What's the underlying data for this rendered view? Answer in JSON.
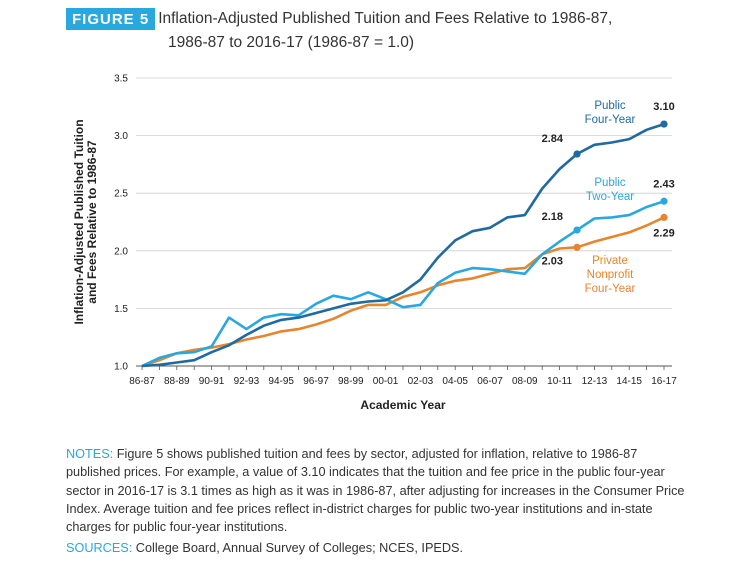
{
  "header": {
    "badge": "FIGURE 5",
    "title_line1": "Inflation-Adjusted Published Tuition and Fees Relative to 1986-87,",
    "title_line2": "1986-87 to 2016-17 (1986-87 = 1.0)"
  },
  "notes": {
    "label": "NOTES:",
    "text": " Figure 5 shows published tuition and fees by sector, adjusted for inflation, relative to 1986-87 published prices. For example, a value of 3.10 indicates that the tuition and fee price in the public four-year sector in 2016-17 is 3.1 times as high as it was in 1986-87, after adjusting for increases in the Consumer Price Index. Average tuition and fee prices reflect in-district charges for public two-year institutions and in-state charges for public four-year institutions."
  },
  "sources": {
    "label": "SOURCES:",
    "text": " College Board, Annual Survey of Colleges; NCES, IPEDS."
  },
  "chart_data": {
    "type": "line",
    "title": "Inflation-Adjusted Published Tuition and Fees Relative to 1986-87, 1986-87 to 2016-17 (1986-87 = 1.0)",
    "xlabel": "Academic Year",
    "ylabel_lines": [
      "Inflation-Adjusted Published Tuition",
      "and Fees Relative to 1986-87"
    ],
    "ylim": [
      1.0,
      3.5
    ],
    "yticks": [
      1.0,
      1.5,
      2.0,
      2.5,
      3.0,
      3.5
    ],
    "ytick_labels": [
      "1.0",
      "1.5",
      "2.0",
      "2.5",
      "3.0",
      "3.5"
    ],
    "grid": "horizontal",
    "categories": [
      "86-87",
      "87-88",
      "88-89",
      "89-90",
      "90-91",
      "91-92",
      "92-93",
      "93-94",
      "94-95",
      "95-96",
      "96-97",
      "97-98",
      "98-99",
      "99-00",
      "00-01",
      "01-02",
      "02-03",
      "03-04",
      "04-05",
      "05-06",
      "06-07",
      "07-08",
      "08-09",
      "09-10",
      "10-11",
      "11-12",
      "12-13",
      "13-14",
      "14-15",
      "15-16",
      "16-17"
    ],
    "xtick_labels": [
      "86-87",
      "88-89",
      "90-91",
      "92-93",
      "94-95",
      "96-97",
      "98-99",
      "00-01",
      "02-03",
      "04-05",
      "06-07",
      "08-09",
      "10-11",
      "12-13",
      "14-15",
      "16-17"
    ],
    "series": [
      {
        "name": "Private Nonprofit Four-Year",
        "label_lines": [
          "Private",
          "Nonprofit",
          "Four-Year"
        ],
        "color": "#e8852c",
        "values": [
          1.0,
          1.05,
          1.11,
          1.14,
          1.16,
          1.19,
          1.23,
          1.26,
          1.3,
          1.32,
          1.36,
          1.41,
          1.48,
          1.53,
          1.53,
          1.6,
          1.64,
          1.7,
          1.74,
          1.76,
          1.8,
          1.84,
          1.85,
          1.97,
          2.02,
          2.03,
          2.08,
          2.12,
          2.16,
          2.22,
          2.29
        ],
        "callouts": [
          {
            "index": 25,
            "label": "2.03"
          },
          {
            "index": 30,
            "label": "2.29"
          }
        ]
      },
      {
        "name": "Public Two-Year",
        "label_lines": [
          "Public",
          "Two-Year"
        ],
        "color": "#29a8df",
        "values": [
          1.0,
          1.07,
          1.11,
          1.12,
          1.17,
          1.42,
          1.32,
          1.42,
          1.45,
          1.44,
          1.54,
          1.61,
          1.58,
          1.64,
          1.58,
          1.51,
          1.53,
          1.72,
          1.81,
          1.85,
          1.84,
          1.82,
          1.8,
          1.97,
          2.08,
          2.18,
          2.28,
          2.29,
          2.31,
          2.38,
          2.43
        ],
        "callouts": [
          {
            "index": 25,
            "label": "2.18"
          },
          {
            "index": 30,
            "label": "2.43"
          }
        ]
      },
      {
        "name": "Public Four-Year",
        "label_lines": [
          "Public",
          "Four-Year"
        ],
        "color": "#1f6aa0",
        "values": [
          1.0,
          1.01,
          1.03,
          1.05,
          1.12,
          1.18,
          1.27,
          1.35,
          1.4,
          1.42,
          1.46,
          1.5,
          1.54,
          1.56,
          1.57,
          1.64,
          1.75,
          1.94,
          2.09,
          2.17,
          2.2,
          2.29,
          2.31,
          2.54,
          2.71,
          2.84,
          2.92,
          2.94,
          2.97,
          3.05,
          3.1
        ],
        "callouts": [
          {
            "index": 25,
            "label": "2.84"
          },
          {
            "index": 30,
            "label": "3.10"
          }
        ]
      }
    ]
  }
}
